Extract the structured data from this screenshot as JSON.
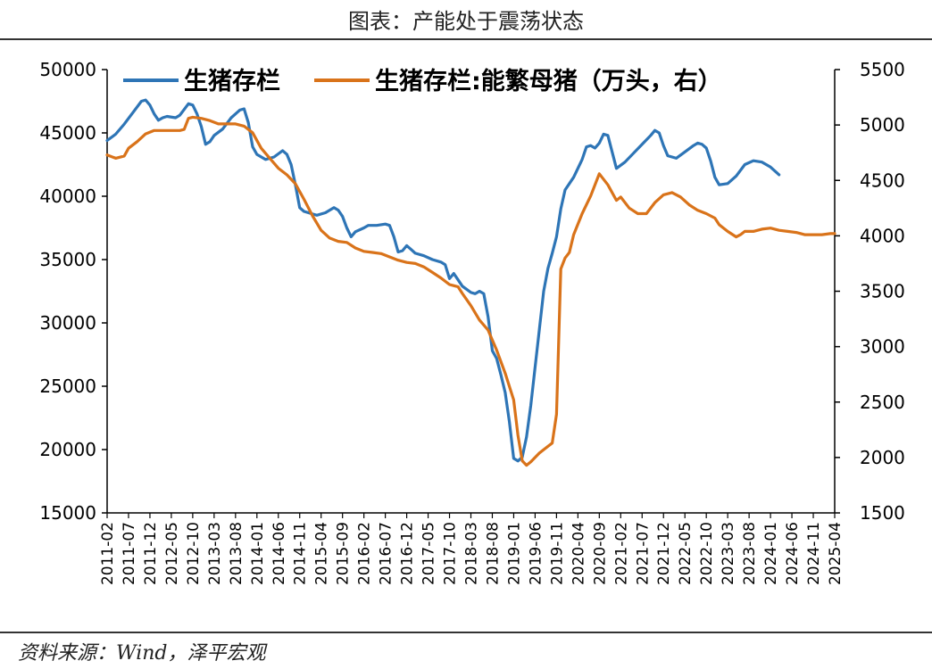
{
  "figure_title": "图表：产能处于震荡状态",
  "source": "资料来源：Wind，泽平宏观",
  "chart_data": {
    "type": "line",
    "title": "",
    "xlabel": "",
    "ylabel_left": "",
    "ylabel_right": "",
    "legend": {
      "placement": "top",
      "entries": [
        "生猪存栏",
        "生猪存栏:能繁母猪（万头，右）"
      ]
    },
    "grid": false,
    "y_left": {
      "min": 15000,
      "max": 50000,
      "ticks": [
        15000,
        20000,
        25000,
        30000,
        35000,
        40000,
        45000,
        50000
      ]
    },
    "y_right": {
      "min": 1500,
      "max": 5500,
      "ticks": [
        1500,
        2000,
        2500,
        3000,
        3500,
        4000,
        4500,
        5000,
        5500
      ]
    },
    "x_ticks": [
      "2011-02",
      "2011-07",
      "2011-12",
      "2012-05",
      "2012-10",
      "2013-03",
      "2013-08",
      "2014-01",
      "2014-06",
      "2014-11",
      "2015-04",
      "2015-09",
      "2016-02",
      "2016-07",
      "2016-12",
      "2017-05",
      "2017-10",
      "2018-03",
      "2018-08",
      "2019-01",
      "2019-06",
      "2019-11",
      "2020-04",
      "2020-09",
      "2021-02",
      "2021-07",
      "2021-12",
      "2022-05",
      "2022-10",
      "2023-03",
      "2023-08",
      "2024-01",
      "2024-06",
      "2024-11",
      "2025-04"
    ],
    "x_start": "2011-02",
    "x_end": "2025-04",
    "colors": {
      "series1": "#2E75B6",
      "series2": "#D9731A",
      "axis": "#000000"
    },
    "series": [
      {
        "name": "生猪存栏",
        "axis": "left",
        "points": [
          [
            "2011-02",
            44400
          ],
          [
            "2011-04",
            44900
          ],
          [
            "2011-06",
            45700
          ],
          [
            "2011-08",
            46600
          ],
          [
            "2011-10",
            47500
          ],
          [
            "2011-11",
            47600
          ],
          [
            "2011-12",
            47200
          ],
          [
            "2012-01",
            46500
          ],
          [
            "2012-02",
            46000
          ],
          [
            "2012-03",
            46200
          ],
          [
            "2012-04",
            46300
          ],
          [
            "2012-06",
            46200
          ],
          [
            "2012-07",
            46400
          ],
          [
            "2012-09",
            47300
          ],
          [
            "2012-10",
            47200
          ],
          [
            "2012-11",
            46500
          ],
          [
            "2012-12",
            45500
          ],
          [
            "2013-01",
            44100
          ],
          [
            "2013-02",
            44300
          ],
          [
            "2013-03",
            44800
          ],
          [
            "2013-05",
            45300
          ],
          [
            "2013-07",
            46200
          ],
          [
            "2013-09",
            46800
          ],
          [
            "2013-10",
            46900
          ],
          [
            "2013-11",
            45800
          ],
          [
            "2013-12",
            43900
          ],
          [
            "2014-01",
            43300
          ],
          [
            "2014-03",
            42900
          ],
          [
            "2014-05",
            43100
          ],
          [
            "2014-07",
            43600
          ],
          [
            "2014-08",
            43300
          ],
          [
            "2014-09",
            42500
          ],
          [
            "2014-10",
            40900
          ],
          [
            "2014-11",
            39100
          ],
          [
            "2014-12",
            38800
          ],
          [
            "2015-02",
            38600
          ],
          [
            "2015-03",
            38500
          ],
          [
            "2015-05",
            38700
          ],
          [
            "2015-07",
            39100
          ],
          [
            "2015-08",
            38900
          ],
          [
            "2015-09",
            38400
          ],
          [
            "2015-10",
            37500
          ],
          [
            "2015-11",
            36800
          ],
          [
            "2015-12",
            37200
          ],
          [
            "2016-02",
            37500
          ],
          [
            "2016-03",
            37700
          ],
          [
            "2016-05",
            37700
          ],
          [
            "2016-07",
            37800
          ],
          [
            "2016-08",
            37700
          ],
          [
            "2016-09",
            36800
          ],
          [
            "2016-10",
            35600
          ],
          [
            "2016-11",
            35700
          ],
          [
            "2016-12",
            36100
          ],
          [
            "2017-01",
            35800
          ],
          [
            "2017-02",
            35500
          ],
          [
            "2017-04",
            35300
          ],
          [
            "2017-06",
            35000
          ],
          [
            "2017-08",
            34800
          ],
          [
            "2017-09",
            34600
          ],
          [
            "2017-10",
            33500
          ],
          [
            "2017-11",
            33900
          ],
          [
            "2017-12",
            33400
          ],
          [
            "2018-01",
            32900
          ],
          [
            "2018-03",
            32400
          ],
          [
            "2018-04",
            32300
          ],
          [
            "2018-05",
            32500
          ],
          [
            "2018-06",
            32300
          ],
          [
            "2018-07",
            30500
          ],
          [
            "2018-08",
            27800
          ],
          [
            "2018-09",
            27200
          ],
          [
            "2018-10",
            25900
          ],
          [
            "2018-11",
            24500
          ],
          [
            "2018-12",
            22200
          ],
          [
            "2019-01",
            19300
          ],
          [
            "2019-02",
            19100
          ],
          [
            "2019-03",
            19400
          ],
          [
            "2019-04",
            21000
          ],
          [
            "2019-05",
            23500
          ],
          [
            "2019-06",
            26500
          ],
          [
            "2019-07",
            29500
          ],
          [
            "2019-08",
            32500
          ],
          [
            "2019-09",
            34300
          ],
          [
            "2019-10",
            35500
          ],
          [
            "2019-11",
            36800
          ],
          [
            "2019-12",
            39000
          ],
          [
            "2020-01",
            40500
          ],
          [
            "2020-02",
            41000
          ],
          [
            "2020-03",
            41500
          ],
          [
            "2020-05",
            42900
          ],
          [
            "2020-06",
            43900
          ],
          [
            "2020-07",
            44000
          ],
          [
            "2020-08",
            43800
          ],
          [
            "2020-09",
            44200
          ],
          [
            "2020-10",
            44900
          ],
          [
            "2020-11",
            44800
          ],
          [
            "2020-12",
            43500
          ],
          [
            "2021-01",
            42200
          ],
          [
            "2021-03",
            42700
          ],
          [
            "2021-05",
            43400
          ],
          [
            "2021-07",
            44100
          ],
          [
            "2021-09",
            44800
          ],
          [
            "2021-10",
            45200
          ],
          [
            "2021-11",
            45000
          ],
          [
            "2021-12",
            44000
          ],
          [
            "2022-01",
            43200
          ],
          [
            "2022-03",
            43000
          ],
          [
            "2022-05",
            43500
          ],
          [
            "2022-07",
            44000
          ],
          [
            "2022-08",
            44200
          ],
          [
            "2022-09",
            44100
          ],
          [
            "2022-10",
            43800
          ],
          [
            "2022-11",
            42800
          ],
          [
            "2022-12",
            41500
          ],
          [
            "2023-01",
            40900
          ],
          [
            "2023-03",
            41000
          ],
          [
            "2023-05",
            41600
          ],
          [
            "2023-07",
            42500
          ],
          [
            "2023-09",
            42800
          ],
          [
            "2023-11",
            42700
          ],
          [
            "2024-01",
            42300
          ],
          [
            "2024-03",
            41700
          ]
        ]
      },
      {
        "name": "生猪存栏:能繁母猪（万头，右）",
        "axis": "right",
        "points": [
          [
            "2011-02",
            4730
          ],
          [
            "2011-04",
            4700
          ],
          [
            "2011-06",
            4720
          ],
          [
            "2011-07",
            4790
          ],
          [
            "2011-09",
            4850
          ],
          [
            "2011-11",
            4920
          ],
          [
            "2012-01",
            4950
          ],
          [
            "2012-03",
            4950
          ],
          [
            "2012-05",
            4950
          ],
          [
            "2012-07",
            4950
          ],
          [
            "2012-08",
            4960
          ],
          [
            "2012-09",
            5060
          ],
          [
            "2012-10",
            5070
          ],
          [
            "2012-12",
            5060
          ],
          [
            "2013-02",
            5040
          ],
          [
            "2013-04",
            5010
          ],
          [
            "2013-06",
            5010
          ],
          [
            "2013-08",
            5010
          ],
          [
            "2013-10",
            4990
          ],
          [
            "2013-12",
            4930
          ],
          [
            "2014-02",
            4790
          ],
          [
            "2014-04",
            4700
          ],
          [
            "2014-06",
            4610
          ],
          [
            "2014-08",
            4550
          ],
          [
            "2014-10",
            4470
          ],
          [
            "2014-12",
            4330
          ],
          [
            "2015-02",
            4180
          ],
          [
            "2015-04",
            4050
          ],
          [
            "2015-06",
            3980
          ],
          [
            "2015-08",
            3950
          ],
          [
            "2015-10",
            3940
          ],
          [
            "2015-12",
            3890
          ],
          [
            "2016-02",
            3860
          ],
          [
            "2016-04",
            3850
          ],
          [
            "2016-06",
            3840
          ],
          [
            "2016-08",
            3810
          ],
          [
            "2016-10",
            3780
          ],
          [
            "2016-12",
            3760
          ],
          [
            "2017-02",
            3750
          ],
          [
            "2017-04",
            3720
          ],
          [
            "2017-06",
            3670
          ],
          [
            "2017-08",
            3620
          ],
          [
            "2017-10",
            3560
          ],
          [
            "2017-12",
            3540
          ],
          [
            "2018-01",
            3480
          ],
          [
            "2018-03",
            3370
          ],
          [
            "2018-05",
            3240
          ],
          [
            "2018-07",
            3150
          ],
          [
            "2018-09",
            2970
          ],
          [
            "2018-11",
            2760
          ],
          [
            "2019-01",
            2520
          ],
          [
            "2019-02",
            2200
          ],
          [
            "2019-03",
            1970
          ],
          [
            "2019-04",
            1930
          ],
          [
            "2019-05",
            1960
          ],
          [
            "2019-07",
            2040
          ],
          [
            "2019-09",
            2100
          ],
          [
            "2019-10",
            2130
          ],
          [
            "2019-11",
            2390
          ],
          [
            "2019-12",
            3700
          ],
          [
            "2020-01",
            3800
          ],
          [
            "2020-02",
            3850
          ],
          [
            "2020-03",
            4010
          ],
          [
            "2020-05",
            4200
          ],
          [
            "2020-07",
            4360
          ],
          [
            "2020-09",
            4560
          ],
          [
            "2020-11",
            4460
          ],
          [
            "2021-01",
            4320
          ],
          [
            "2021-02",
            4350
          ],
          [
            "2021-04",
            4250
          ],
          [
            "2021-06",
            4200
          ],
          [
            "2021-08",
            4200
          ],
          [
            "2021-10",
            4300
          ],
          [
            "2021-12",
            4370
          ],
          [
            "2022-02",
            4390
          ],
          [
            "2022-04",
            4350
          ],
          [
            "2022-06",
            4280
          ],
          [
            "2022-08",
            4230
          ],
          [
            "2022-10",
            4200
          ],
          [
            "2022-12",
            4160
          ],
          [
            "2023-01",
            4100
          ],
          [
            "2023-03",
            4040
          ],
          [
            "2023-05",
            3990
          ],
          [
            "2023-06",
            4010
          ],
          [
            "2023-07",
            4040
          ],
          [
            "2023-09",
            4040
          ],
          [
            "2023-11",
            4060
          ],
          [
            "2024-01",
            4070
          ],
          [
            "2024-03",
            4050
          ],
          [
            "2024-05",
            4040
          ],
          [
            "2024-07",
            4030
          ],
          [
            "2024-09",
            4010
          ],
          [
            "2024-11",
            4010
          ],
          [
            "2025-01",
            4010
          ],
          [
            "2025-03",
            4020
          ],
          [
            "2025-04",
            4020
          ]
        ]
      }
    ]
  }
}
